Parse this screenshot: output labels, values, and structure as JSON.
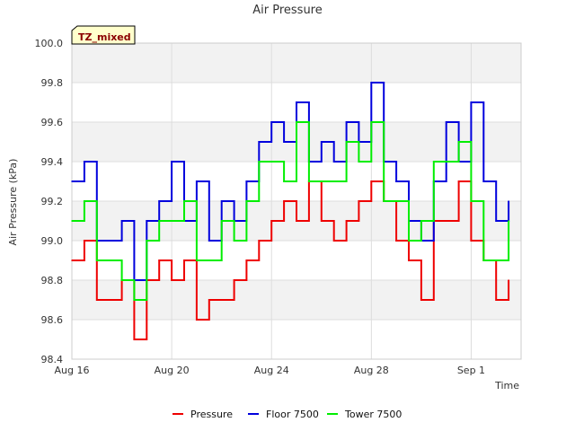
{
  "chart_data": {
    "type": "line",
    "title": "Air Pressure",
    "xlabel": "Time",
    "ylabel": "Air Pressure (kPa)",
    "ylim": [
      98.4,
      100.0
    ],
    "xlim": [
      "2023-08-16",
      "2023-09-03"
    ],
    "yticks": [
      "98.4",
      "98.6",
      "98.8",
      "99.0",
      "99.2",
      "99.4",
      "99.6",
      "99.8",
      "100.0"
    ],
    "xticks": [
      {
        "label": "Aug 16",
        "date": "2023-08-16"
      },
      {
        "label": "Aug 20",
        "date": "2023-08-20"
      },
      {
        "label": "Aug 24",
        "date": "2023-08-24"
      },
      {
        "label": "Aug 28",
        "date": "2023-08-28"
      },
      {
        "label": "Sep 1",
        "date": "2023-09-01"
      }
    ],
    "grid": true,
    "legend_position": "bottom",
    "badge": "TZ_mixed",
    "colors": {
      "Pressure": "#ee0000",
      "Floor 7500": "#0000dd",
      "Tower 7500": "#00ee00"
    },
    "series": [
      {
        "name": "Pressure",
        "x": [
          "2023-08-16",
          "2023-08-16 12:00",
          "2023-08-17",
          "2023-08-17 12:00",
          "2023-08-18",
          "2023-08-18 12:00",
          "2023-08-19",
          "2023-08-19 12:00",
          "2023-08-20",
          "2023-08-20 12:00",
          "2023-08-21",
          "2023-08-21 12:00",
          "2023-08-22",
          "2023-08-22 12:00",
          "2023-08-23",
          "2023-08-23 12:00",
          "2023-08-24",
          "2023-08-24 12:00",
          "2023-08-25",
          "2023-08-25 12:00",
          "2023-08-26",
          "2023-08-26 12:00",
          "2023-08-27",
          "2023-08-27 12:00",
          "2023-08-28",
          "2023-08-28 12:00",
          "2023-08-29",
          "2023-08-29 12:00",
          "2023-08-30",
          "2023-08-30 12:00",
          "2023-08-31",
          "2023-08-31 12:00",
          "2023-09-01",
          "2023-09-01 12:00",
          "2023-09-02",
          "2023-09-02 12:00"
        ],
        "values": [
          98.9,
          99.0,
          98.7,
          98.7,
          98.8,
          98.5,
          98.8,
          98.9,
          98.8,
          98.9,
          98.6,
          98.7,
          98.7,
          98.8,
          98.9,
          99.0,
          99.1,
          99.2,
          99.1,
          99.3,
          99.1,
          99.0,
          99.1,
          99.2,
          99.3,
          99.2,
          99.0,
          98.9,
          98.7,
          99.1,
          99.1,
          99.3,
          99.0,
          98.9,
          98.7,
          98.8
        ],
        "values_note": ""
      },
      {
        "name": "Floor 7500",
        "x": [
          "2023-08-16",
          "2023-08-16 12:00",
          "2023-08-17",
          "2023-08-17 12:00",
          "2023-08-18",
          "2023-08-18 12:00",
          "2023-08-19",
          "2023-08-19 12:00",
          "2023-08-20",
          "2023-08-20 12:00",
          "2023-08-21",
          "2023-08-21 12:00",
          "2023-08-22",
          "2023-08-22 12:00",
          "2023-08-23",
          "2023-08-23 12:00",
          "2023-08-24",
          "2023-08-24 12:00",
          "2023-08-25",
          "2023-08-25 12:00",
          "2023-08-26",
          "2023-08-26 12:00",
          "2023-08-27",
          "2023-08-27 12:00",
          "2023-08-28",
          "2023-08-28 12:00",
          "2023-08-29",
          "2023-08-29 12:00",
          "2023-08-30",
          "2023-08-30 12:00",
          "2023-08-31",
          "2023-08-31 12:00",
          "2023-09-01",
          "2023-09-01 12:00",
          "2023-09-02",
          "2023-09-02 12:00"
        ],
        "values": [
          99.3,
          99.4,
          99.0,
          99.0,
          99.1,
          98.8,
          99.1,
          99.2,
          99.4,
          99.1,
          99.3,
          99.0,
          99.2,
          99.1,
          99.3,
          99.5,
          99.6,
          99.5,
          99.7,
          99.4,
          99.5,
          99.4,
          99.6,
          99.5,
          99.8,
          99.4,
          99.3,
          99.1,
          99.0,
          99.3,
          99.6,
          99.4,
          99.7,
          99.3,
          99.1,
          99.2
        ],
        "values_note": ""
      },
      {
        "name": "Tower 7500",
        "x": [
          "2023-08-16",
          "2023-08-16 12:00",
          "2023-08-17",
          "2023-08-17 12:00",
          "2023-08-18",
          "2023-08-18 12:00",
          "2023-08-19",
          "2023-08-19 12:00",
          "2023-08-20",
          "2023-08-20 12:00",
          "2023-08-21",
          "2023-08-21 12:00",
          "2023-08-22",
          "2023-08-22 12:00",
          "2023-08-23",
          "2023-08-23 12:00",
          "2023-08-24",
          "2023-08-24 12:00",
          "2023-08-25",
          "2023-08-25 12:00",
          "2023-08-26",
          "2023-08-26 12:00",
          "2023-08-27",
          "2023-08-27 12:00",
          "2023-08-28",
          "2023-08-28 12:00",
          "2023-08-29",
          "2023-08-29 12:00",
          "2023-08-30",
          "2023-08-30 12:00",
          "2023-08-31",
          "2023-08-31 12:00",
          "2023-09-01",
          "2023-09-01 12:00",
          "2023-09-02",
          "2023-09-02 12:00"
        ],
        "values": [
          99.1,
          99.2,
          98.9,
          98.9,
          98.8,
          98.7,
          99.0,
          99.1,
          99.1,
          99.2,
          98.9,
          98.9,
          99.1,
          99.0,
          99.2,
          99.4,
          99.4,
          99.3,
          99.6,
          99.3,
          99.3,
          99.3,
          99.5,
          99.4,
          99.6,
          99.2,
          99.2,
          99.0,
          99.1,
          99.4,
          99.4,
          99.5,
          99.2,
          98.9,
          98.9,
          99.1
        ],
        "values_note": ""
      }
    ]
  }
}
